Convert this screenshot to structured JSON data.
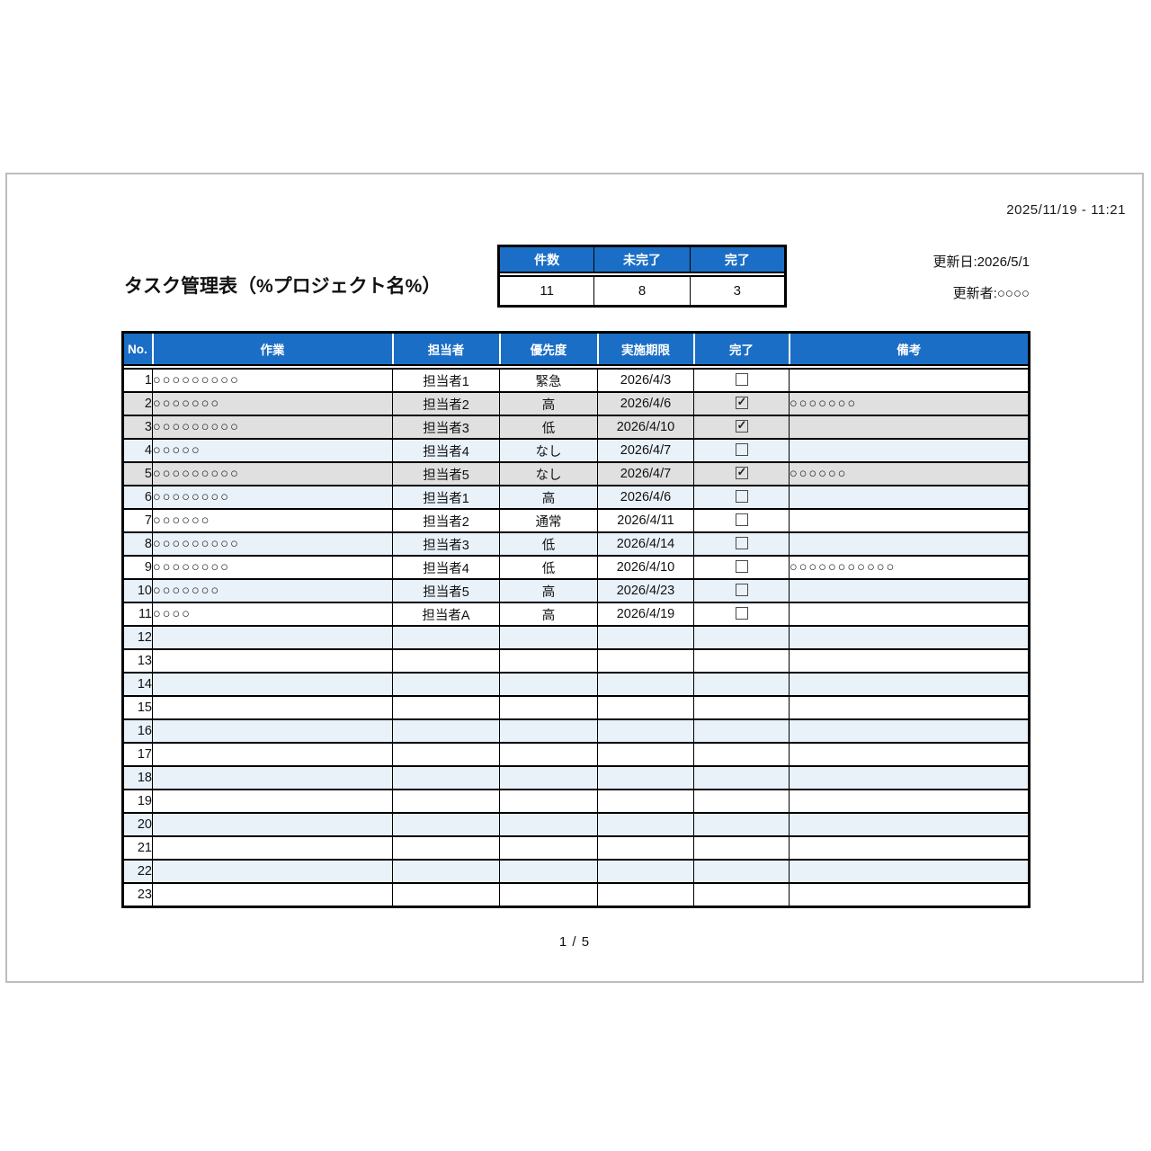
{
  "page": {
    "print_timestamp": "2025/11/19 - 11:21",
    "title": "タスク管理表（%プロジェクト名%）",
    "updated_date": "更新日:2026/5/1",
    "updated_by": "更新者:○○○○",
    "page_number": "1 / 5"
  },
  "summary": {
    "columns": [
      {
        "label": "件数",
        "value": "11"
      },
      {
        "label": "未完了",
        "value": "8"
      },
      {
        "label": "完了",
        "value": "3"
      }
    ]
  },
  "task_table": {
    "headers": [
      "No.",
      "作業",
      "担当者",
      "優先度",
      "実施期限",
      "完了",
      "備考"
    ],
    "rows": [
      {
        "no": "1",
        "task": "○○○○○○○○○",
        "assignee": "担当者1",
        "priority": "緊急",
        "deadline": "2026/4/3",
        "done": false,
        "has_checkbox": true,
        "remarks": ""
      },
      {
        "no": "2",
        "task": "○○○○○○○",
        "assignee": "担当者2",
        "priority": "高",
        "deadline": "2026/4/6",
        "done": true,
        "has_checkbox": true,
        "remarks": "○○○○○○○"
      },
      {
        "no": "3",
        "task": "○○○○○○○○○",
        "assignee": "担当者3",
        "priority": "低",
        "deadline": "2026/4/10",
        "done": true,
        "has_checkbox": true,
        "remarks": ""
      },
      {
        "no": "4",
        "task": "○○○○○",
        "assignee": "担当者4",
        "priority": "なし",
        "deadline": "2026/4/7",
        "done": false,
        "has_checkbox": true,
        "remarks": ""
      },
      {
        "no": "5",
        "task": "○○○○○○○○○",
        "assignee": "担当者5",
        "priority": "なし",
        "deadline": "2026/4/7",
        "done": true,
        "has_checkbox": true,
        "remarks": "○○○○○○"
      },
      {
        "no": "6",
        "task": "○○○○○○○○",
        "assignee": "担当者1",
        "priority": "高",
        "deadline": "2026/4/6",
        "done": false,
        "has_checkbox": true,
        "remarks": ""
      },
      {
        "no": "7",
        "task": "○○○○○○",
        "assignee": "担当者2",
        "priority": "通常",
        "deadline": "2026/4/11",
        "done": false,
        "has_checkbox": true,
        "remarks": ""
      },
      {
        "no": "8",
        "task": "○○○○○○○○○",
        "assignee": "担当者3",
        "priority": "低",
        "deadline": "2026/4/14",
        "done": false,
        "has_checkbox": true,
        "remarks": ""
      },
      {
        "no": "9",
        "task": "○○○○○○○○",
        "assignee": "担当者4",
        "priority": "低",
        "deadline": "2026/4/10",
        "done": false,
        "has_checkbox": true,
        "remarks": "○○○○○○○○○○○"
      },
      {
        "no": "10",
        "task": "○○○○○○○",
        "assignee": "担当者5",
        "priority": "高",
        "deadline": "2026/4/23",
        "done": false,
        "has_checkbox": true,
        "remarks": ""
      },
      {
        "no": "11",
        "task": "○○○○",
        "assignee": "担当者A",
        "priority": "高",
        "deadline": "2026/4/19",
        "done": false,
        "has_checkbox": true,
        "remarks": ""
      },
      {
        "no": "12",
        "task": "",
        "assignee": "",
        "priority": "",
        "deadline": "",
        "done": false,
        "has_checkbox": false,
        "remarks": ""
      },
      {
        "no": "13",
        "task": "",
        "assignee": "",
        "priority": "",
        "deadline": "",
        "done": false,
        "has_checkbox": false,
        "remarks": ""
      },
      {
        "no": "14",
        "task": "",
        "assignee": "",
        "priority": "",
        "deadline": "",
        "done": false,
        "has_checkbox": false,
        "remarks": ""
      },
      {
        "no": "15",
        "task": "",
        "assignee": "",
        "priority": "",
        "deadline": "",
        "done": false,
        "has_checkbox": false,
        "remarks": ""
      },
      {
        "no": "16",
        "task": "",
        "assignee": "",
        "priority": "",
        "deadline": "",
        "done": false,
        "has_checkbox": false,
        "remarks": ""
      },
      {
        "no": "17",
        "task": "",
        "assignee": "",
        "priority": "",
        "deadline": "",
        "done": false,
        "has_checkbox": false,
        "remarks": ""
      },
      {
        "no": "18",
        "task": "",
        "assignee": "",
        "priority": "",
        "deadline": "",
        "done": false,
        "has_checkbox": false,
        "remarks": ""
      },
      {
        "no": "19",
        "task": "",
        "assignee": "",
        "priority": "",
        "deadline": "",
        "done": false,
        "has_checkbox": false,
        "remarks": ""
      },
      {
        "no": "20",
        "task": "",
        "assignee": "",
        "priority": "",
        "deadline": "",
        "done": false,
        "has_checkbox": false,
        "remarks": ""
      },
      {
        "no": "21",
        "task": "",
        "assignee": "",
        "priority": "",
        "deadline": "",
        "done": false,
        "has_checkbox": false,
        "remarks": ""
      },
      {
        "no": "22",
        "task": "",
        "assignee": "",
        "priority": "",
        "deadline": "",
        "done": false,
        "has_checkbox": false,
        "remarks": ""
      },
      {
        "no": "23",
        "task": "",
        "assignee": "",
        "priority": "",
        "deadline": "",
        "done": false,
        "has_checkbox": false,
        "remarks": ""
      }
    ]
  },
  "colors": {
    "header_blue": "#1b6ec5",
    "band_blue": "#e9f1f9",
    "done_gray": "#e0e0e0",
    "page_border_gray": "#bdbdbd"
  }
}
